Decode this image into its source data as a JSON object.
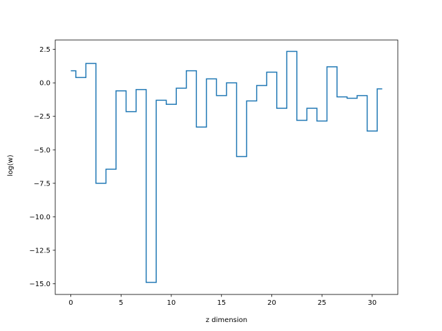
{
  "chart_data": {
    "type": "line",
    "drawstyle": "steps-mid",
    "title": "",
    "xlabel": "z dimension",
    "ylabel": "log(w)",
    "xlim": [
      -1.55,
      32.55
    ],
    "ylim": [
      -15.8,
      3.2
    ],
    "xticks": [
      0,
      5,
      10,
      15,
      20,
      25,
      30
    ],
    "yticks": [
      2.5,
      0.0,
      -2.5,
      -5.0,
      -7.5,
      -10.0,
      -12.5,
      -15.0
    ],
    "ytick_labels": [
      "2.5",
      "0.0",
      "−2.5",
      "−5.0",
      "−7.5",
      "−10.0",
      "−12.5",
      "−15.0"
    ],
    "grid": false,
    "legend": "none",
    "series": [
      {
        "color": "#1f77b4",
        "x": [
          0,
          1,
          2,
          3,
          4,
          5,
          6,
          7,
          8,
          9,
          10,
          11,
          12,
          13,
          14,
          15,
          16,
          17,
          18,
          19,
          20,
          21,
          22,
          23,
          24,
          25,
          26,
          27,
          28,
          29,
          30,
          31
        ],
        "values": [
          0.9,
          0.4,
          1.45,
          -7.5,
          -6.45,
          -0.6,
          -2.15,
          -0.5,
          -14.9,
          -1.3,
          -1.6,
          -0.4,
          0.9,
          -3.3,
          0.3,
          -0.95,
          0.0,
          -5.5,
          -1.35,
          -0.2,
          0.8,
          -1.9,
          2.35,
          -2.8,
          -1.9,
          -2.85,
          1.2,
          -1.05,
          -1.15,
          -0.95,
          -3.6,
          -0.45
        ]
      }
    ]
  }
}
